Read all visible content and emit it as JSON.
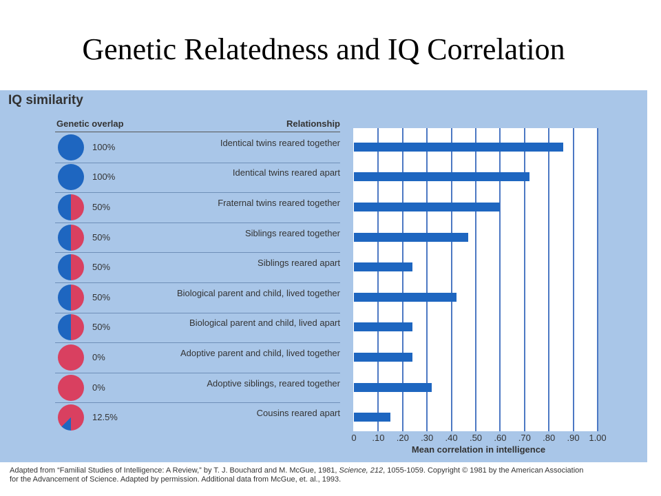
{
  "slide": {
    "title": "Genetic Relatedness and IQ Correlation"
  },
  "figure": {
    "subtitle": "IQ similarity",
    "header_overlap": "Genetic overlap",
    "header_relationship": "Relationship",
    "xlabel": "Mean correlation in intelligence",
    "credit_line1_a": "Adapted from “Familial Studies of Intelligence: A Review,” by T. J. Bouchard and M. McGue, 1981, ",
    "credit_line1_journal": "Science, 212",
    "credit_line1_b": ", 1055-1059. Copyright © 1981 by the American Association",
    "credit_line2": "for the Advancement of Science. Adapted by permission. Additional data from McGue, et. al., 1993."
  },
  "colors": {
    "shared": "#1e66c0",
    "not_shared": "#d94060",
    "panel": "#a9c6e8",
    "bar": "#1e66c0"
  },
  "chart_data": {
    "type": "bar",
    "orientation": "horizontal",
    "categories": [
      "Identical twins reared together",
      "Identical twins reared apart",
      "Fraternal twins reared together",
      "Siblings reared together",
      "Siblings reared apart",
      "Biological parent and child, lived together",
      "Biological parent and child, lived apart",
      "Adoptive parent and child, lived together",
      "Adoptive siblings, reared together",
      "Cousins reared apart"
    ],
    "genetic_overlap": [
      "100%",
      "100%",
      "50%",
      "50%",
      "50%",
      "50%",
      "50%",
      "0%",
      "0%",
      "12.5%"
    ],
    "genetic_overlap_fraction": [
      1,
      1,
      0.5,
      0.5,
      0.5,
      0.5,
      0.5,
      0,
      0,
      0.125
    ],
    "values": [
      0.86,
      0.72,
      0.6,
      0.47,
      0.24,
      0.42,
      0.24,
      0.24,
      0.32,
      0.15
    ],
    "xlim": [
      0,
      1.0
    ],
    "ticks": [
      "0",
      ".10",
      ".20",
      ".30",
      ".40",
      ".50",
      ".60",
      ".70",
      ".80",
      ".90",
      "1.00"
    ],
    "xlabel": "Mean correlation in intelligence",
    "grid": true
  }
}
